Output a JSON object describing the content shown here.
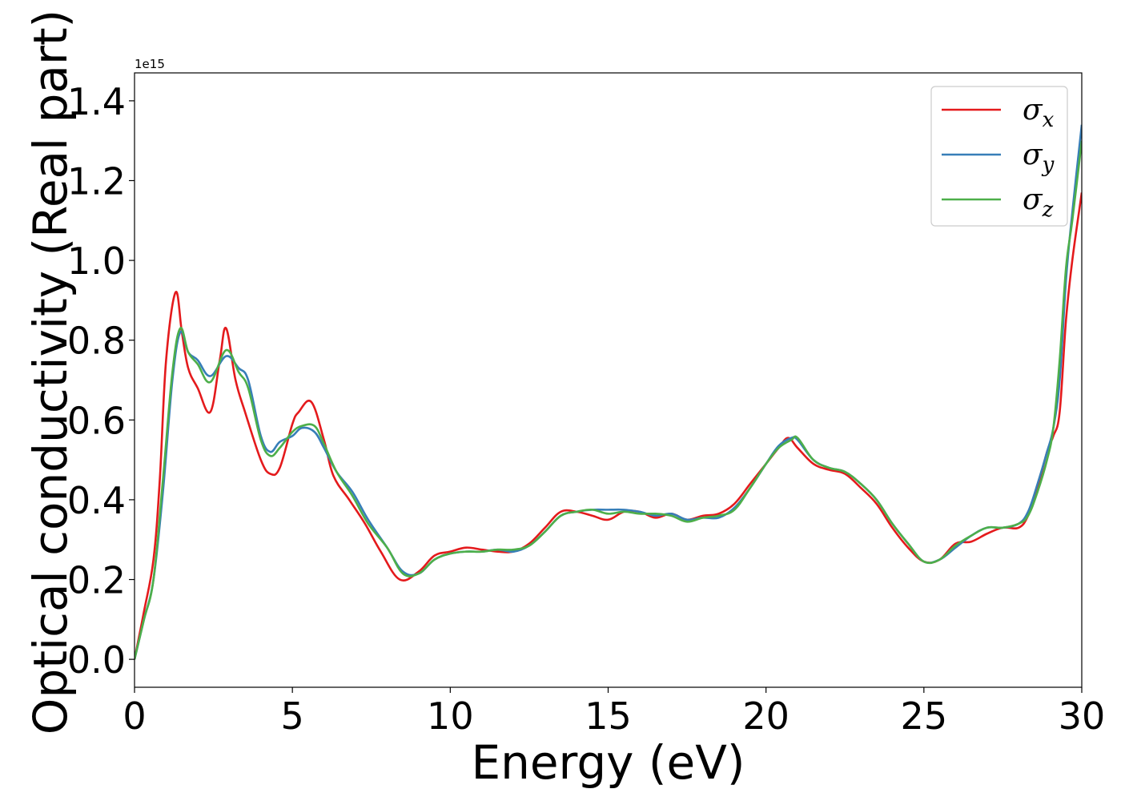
{
  "chart_data": {
    "type": "line",
    "title": "",
    "xlabel": "Energy (eV)",
    "ylabel": "Optical conductivity (Real part)",
    "y_offset_label": "1e15",
    "xlim": [
      0,
      30
    ],
    "ylim": [
      -0.07,
      1.47
    ],
    "xticks": [
      0,
      5,
      10,
      15,
      20,
      25,
      30
    ],
    "xtick_labels": [
      "0",
      "5",
      "10",
      "15",
      "20",
      "25",
      "30"
    ],
    "yticks": [
      0.0,
      0.2,
      0.4,
      0.6,
      0.8,
      1.0,
      1.2,
      1.4
    ],
    "ytick_labels": [
      "0.0",
      "0.2",
      "0.4",
      "0.6",
      "0.8",
      "1.0",
      "1.2",
      "1.4"
    ],
    "grid": false,
    "legend_position": "top-right",
    "series": [
      {
        "name": "σx",
        "color": "#e41a1c",
        "x": [
          0,
          0.3,
          0.6,
          0.8,
          1.0,
          1.3,
          1.5,
          1.7,
          2.0,
          2.4,
          2.7,
          2.9,
          3.2,
          3.5,
          4.0,
          4.3,
          4.6,
          5.0,
          5.2,
          5.6,
          6.0,
          6.3,
          6.8,
          7.3,
          7.8,
          8.4,
          9.0,
          9.5,
          10.0,
          10.5,
          11.0,
          11.5,
          12.0,
          12.5,
          13.0,
          13.5,
          14.0,
          14.5,
          15.0,
          15.5,
          16.0,
          16.5,
          17.0,
          17.5,
          18.0,
          18.5,
          19.0,
          19.5,
          20.0,
          20.4,
          20.7,
          21.0,
          21.5,
          22.0,
          22.5,
          23.0,
          23.5,
          24.0,
          24.5,
          25.0,
          25.5,
          26.0,
          26.5,
          27.0,
          27.5,
          28.0,
          28.3,
          28.6,
          28.9,
          29.1,
          29.3,
          29.5,
          29.7,
          30.0
        ],
        "y": [
          0.0,
          0.12,
          0.25,
          0.45,
          0.75,
          0.92,
          0.82,
          0.73,
          0.68,
          0.62,
          0.75,
          0.83,
          0.7,
          0.62,
          0.5,
          0.465,
          0.48,
          0.59,
          0.62,
          0.645,
          0.55,
          0.46,
          0.4,
          0.34,
          0.27,
          0.2,
          0.22,
          0.26,
          0.27,
          0.28,
          0.275,
          0.27,
          0.27,
          0.29,
          0.33,
          0.37,
          0.37,
          0.36,
          0.35,
          0.37,
          0.37,
          0.355,
          0.365,
          0.35,
          0.36,
          0.365,
          0.39,
          0.44,
          0.49,
          0.53,
          0.555,
          0.53,
          0.49,
          0.475,
          0.465,
          0.43,
          0.39,
          0.33,
          0.28,
          0.245,
          0.25,
          0.29,
          0.295,
          0.315,
          0.33,
          0.33,
          0.36,
          0.43,
          0.52,
          0.56,
          0.62,
          0.85,
          1.0,
          1.17
        ]
      },
      {
        "name": "σy",
        "color": "#377eb8",
        "x": [
          0,
          0.3,
          0.6,
          0.9,
          1.2,
          1.45,
          1.7,
          2.0,
          2.4,
          2.9,
          3.3,
          3.6,
          4.0,
          4.3,
          4.6,
          5.0,
          5.3,
          5.7,
          6.0,
          6.4,
          6.9,
          7.4,
          8.0,
          8.5,
          9.0,
          9.5,
          10.0,
          10.5,
          11.0,
          11.5,
          12.0,
          12.5,
          13.0,
          13.5,
          14.0,
          14.5,
          15.0,
          15.5,
          16.0,
          16.5,
          17.0,
          17.5,
          18.0,
          18.5,
          19.0,
          19.5,
          20.0,
          20.4,
          20.8,
          21.0,
          21.5,
          22.0,
          22.5,
          23.0,
          23.5,
          24.0,
          24.5,
          25.0,
          25.5,
          26.0,
          26.5,
          27.0,
          27.5,
          28.0,
          28.3,
          28.6,
          28.9,
          29.1,
          29.3,
          29.5,
          29.7,
          30.0
        ],
        "y": [
          0.0,
          0.1,
          0.2,
          0.42,
          0.7,
          0.82,
          0.77,
          0.75,
          0.71,
          0.76,
          0.73,
          0.7,
          0.56,
          0.52,
          0.545,
          0.56,
          0.58,
          0.57,
          0.53,
          0.47,
          0.42,
          0.35,
          0.28,
          0.22,
          0.215,
          0.25,
          0.265,
          0.27,
          0.27,
          0.275,
          0.27,
          0.285,
          0.32,
          0.36,
          0.37,
          0.375,
          0.375,
          0.375,
          0.37,
          0.36,
          0.365,
          0.35,
          0.355,
          0.355,
          0.38,
          0.43,
          0.49,
          0.535,
          0.555,
          0.55,
          0.5,
          0.48,
          0.47,
          0.44,
          0.4,
          0.34,
          0.29,
          0.245,
          0.25,
          0.28,
          0.31,
          0.33,
          0.33,
          0.34,
          0.37,
          0.44,
          0.52,
          0.58,
          0.7,
          0.95,
          1.12,
          1.34
        ]
      },
      {
        "name": "σz",
        "color": "#4daf4a",
        "x": [
          0,
          0.3,
          0.6,
          0.9,
          1.2,
          1.45,
          1.7,
          2.0,
          2.4,
          2.9,
          3.3,
          3.6,
          4.0,
          4.3,
          4.6,
          5.0,
          5.3,
          5.7,
          6.0,
          6.4,
          6.9,
          7.4,
          8.0,
          8.5,
          9.0,
          9.5,
          10.0,
          10.5,
          11.0,
          11.5,
          12.0,
          12.5,
          13.0,
          13.5,
          14.0,
          14.5,
          15.0,
          15.5,
          16.0,
          16.5,
          17.0,
          17.5,
          18.0,
          18.5,
          19.0,
          19.5,
          20.0,
          20.4,
          20.8,
          21.0,
          21.5,
          22.0,
          22.5,
          23.0,
          23.5,
          24.0,
          24.5,
          25.0,
          25.5,
          26.0,
          26.5,
          27.0,
          27.5,
          28.0,
          28.3,
          28.6,
          28.9,
          29.1,
          29.3,
          29.5,
          29.7,
          30.0
        ],
        "y": [
          0.0,
          0.1,
          0.2,
          0.45,
          0.72,
          0.83,
          0.77,
          0.74,
          0.695,
          0.775,
          0.72,
          0.68,
          0.55,
          0.51,
          0.53,
          0.57,
          0.585,
          0.585,
          0.54,
          0.47,
          0.41,
          0.34,
          0.28,
          0.215,
          0.215,
          0.25,
          0.265,
          0.27,
          0.27,
          0.275,
          0.275,
          0.285,
          0.32,
          0.36,
          0.37,
          0.375,
          0.365,
          0.37,
          0.365,
          0.365,
          0.36,
          0.345,
          0.355,
          0.36,
          0.375,
          0.43,
          0.49,
          0.53,
          0.55,
          0.555,
          0.5,
          0.48,
          0.47,
          0.44,
          0.4,
          0.34,
          0.29,
          0.245,
          0.25,
          0.285,
          0.31,
          0.33,
          0.33,
          0.34,
          0.36,
          0.42,
          0.5,
          0.58,
          0.75,
          0.98,
          1.1,
          1.3
        ]
      }
    ]
  }
}
